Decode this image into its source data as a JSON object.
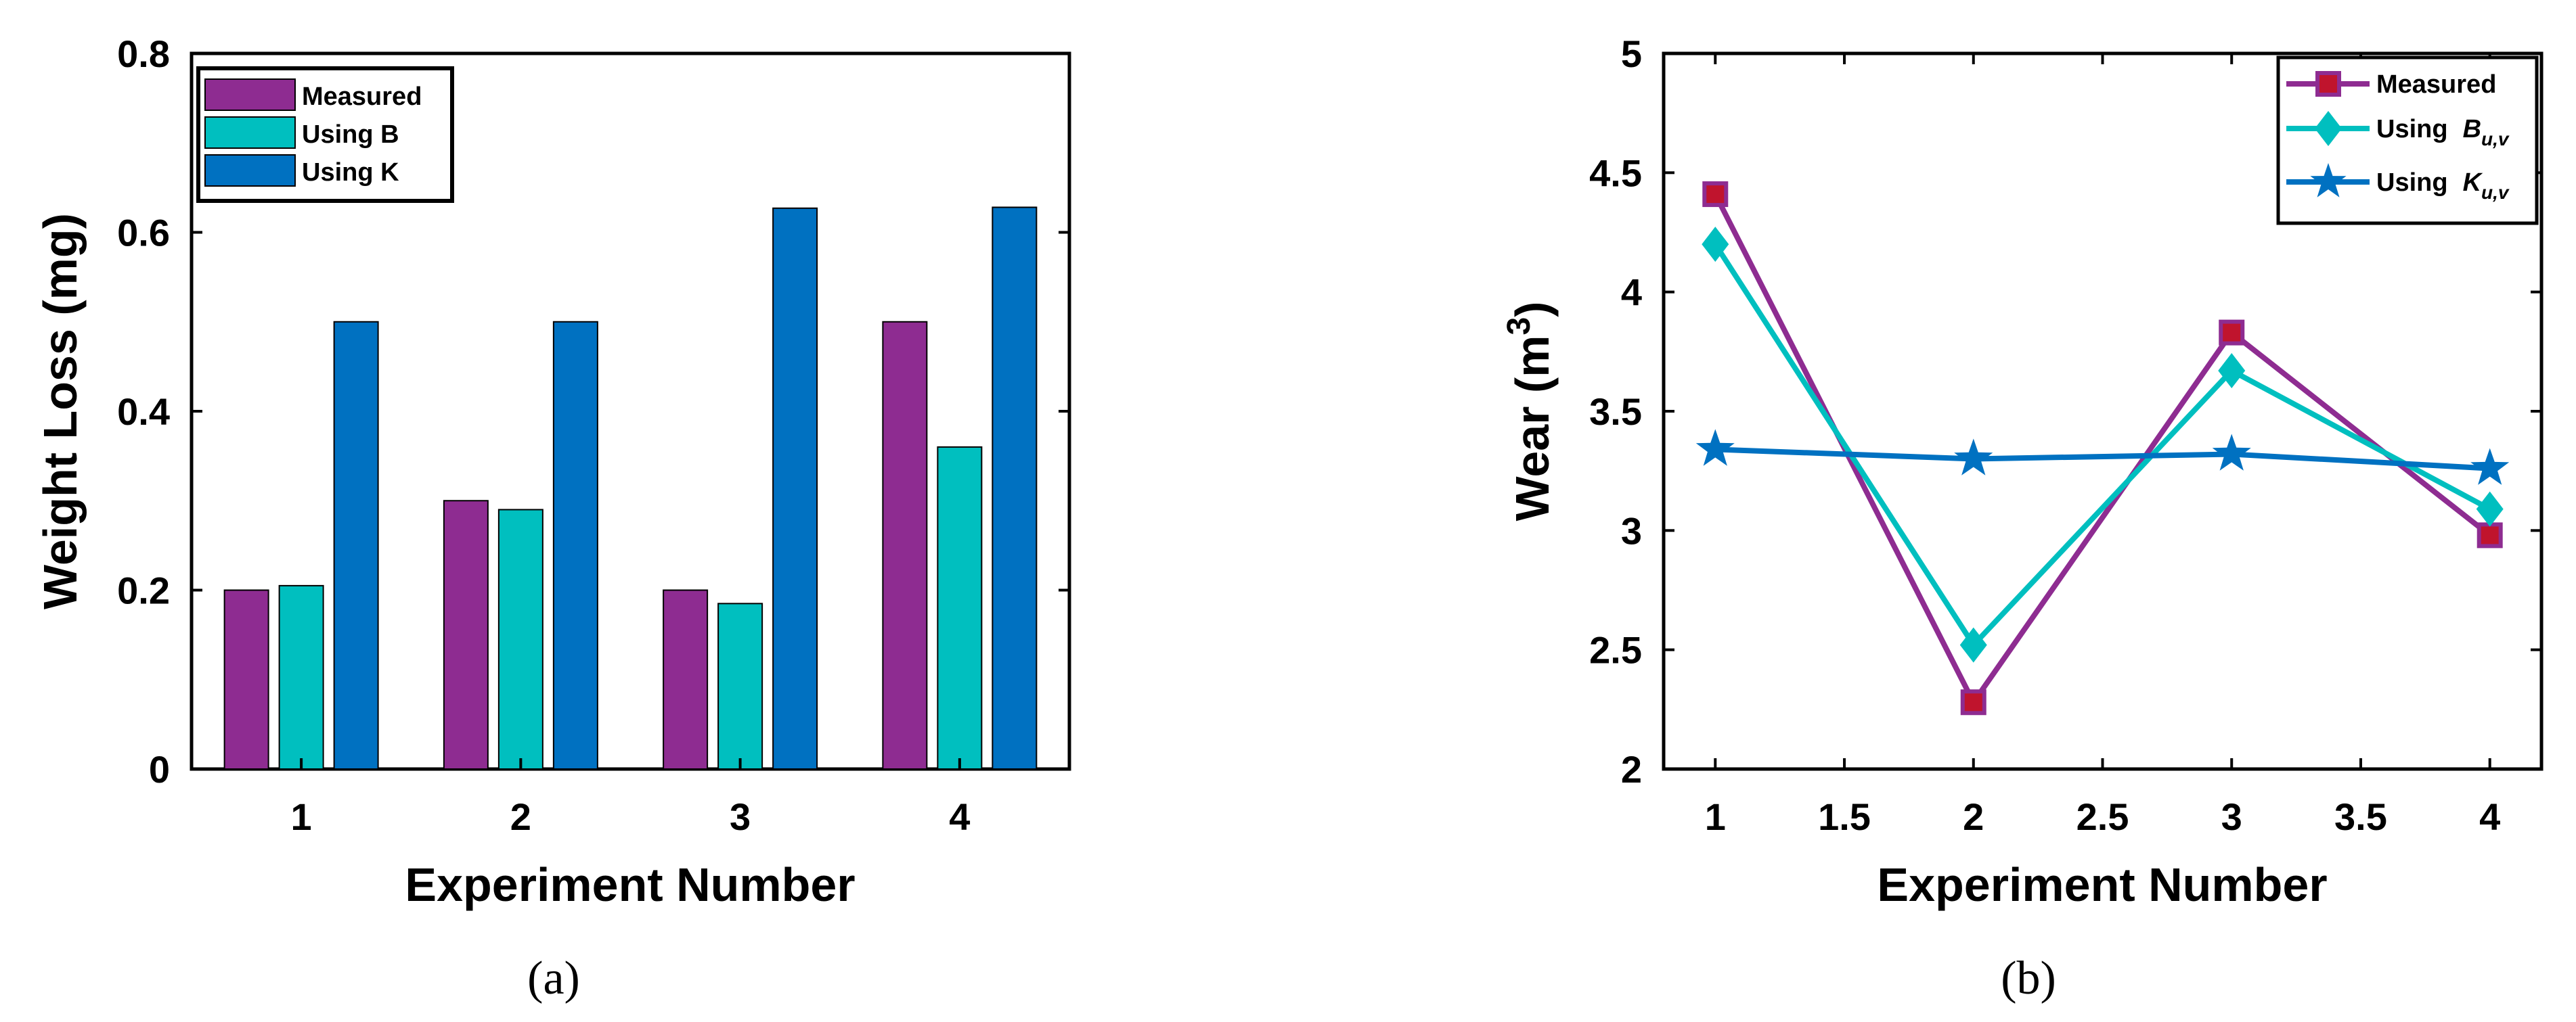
{
  "chart_data": [
    {
      "type": "bar",
      "panel": "(a)",
      "categories": [
        "1",
        "2",
        "3",
        "4"
      ],
      "series": [
        {
          "name": "Measured",
          "color": "#8e2c91",
          "values": [
            0.2,
            0.3,
            0.2,
            0.5
          ]
        },
        {
          "name": "Using B",
          "color": "#00bfbf",
          "values": [
            0.205,
            0.29,
            0.185,
            0.36
          ]
        },
        {
          "name": "Using K",
          "color": "#0071c1",
          "values": [
            0.5,
            0.5,
            0.627,
            0.628
          ]
        }
      ],
      "xlabel": "Experiment Number",
      "ylabel": "Weight Loss (mg)",
      "ylim": [
        0,
        0.8
      ],
      "yticks": [
        "0",
        "0.2",
        "0.4",
        "0.6",
        "0.8"
      ],
      "legend_position": "top-left"
    },
    {
      "type": "line",
      "panel": "(b)",
      "x": [
        1,
        2,
        3,
        4
      ],
      "series": [
        {
          "name": "Measured",
          "color": "#8e2c91",
          "marker": "square",
          "values": [
            4.41,
            2.28,
            3.83,
            2.98
          ]
        },
        {
          "name": "Using",
          "symbol": "B",
          "subscript": "u,v",
          "color": "#00bfbf",
          "marker": "diamond",
          "values": [
            4.2,
            2.52,
            3.67,
            3.09
          ]
        },
        {
          "name": "Using",
          "symbol": "K",
          "subscript": "u,v",
          "color": "#0071c1",
          "marker": "star",
          "values": [
            3.34,
            3.3,
            3.32,
            3.26
          ]
        }
      ],
      "xlabel": "Experiment Number",
      "ylabel": "Wear (m",
      "ylabel_sup": "3",
      "ylabel_end": ")",
      "xlim": [
        0.8,
        4.2
      ],
      "ylim": [
        2,
        5
      ],
      "xticks": [
        "1",
        "1.5",
        "2",
        "2.5",
        "3",
        "3.5",
        "4"
      ],
      "yticks": [
        "2",
        "2.5",
        "3",
        "3.5",
        "4",
        "4.5",
        "5"
      ],
      "legend_position": "top-right"
    }
  ]
}
